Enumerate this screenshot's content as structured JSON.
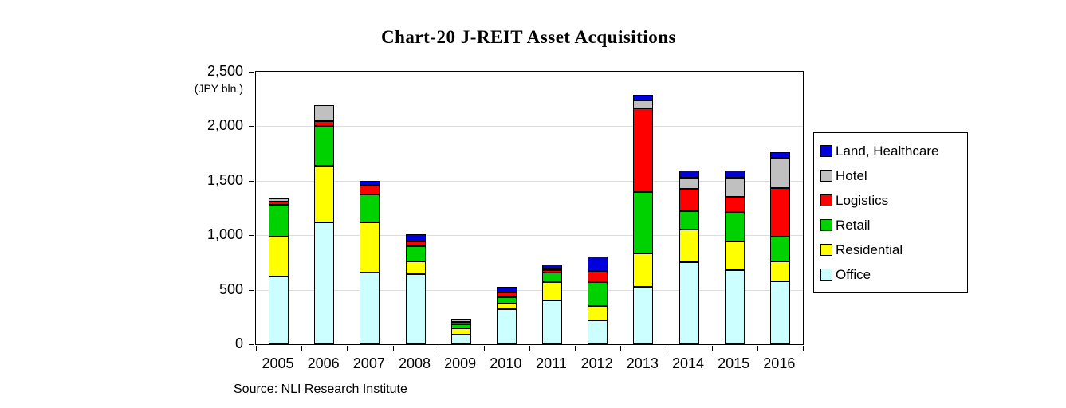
{
  "title": "Chart-20 J-REIT Asset Acquisitions",
  "source_note": "Source: NLI Research Institute",
  "y_axis": {
    "unit_label": "(JPY bln.)",
    "tick_labels_top_to_bottom": [
      "2,500",
      "2,000",
      "1,500",
      "1,000",
      "500",
      "0"
    ]
  },
  "colors": {
    "office": "#CCFFFF",
    "residential": "#FFFF00",
    "retail": "#00D200",
    "logistics": "#FF0000",
    "hotel": "#C0C0C0",
    "land_healthcare": "#0000DC",
    "segment_border": "#000000",
    "gridline": "#DCDCDC"
  },
  "chart_data": {
    "type": "bar",
    "stacked": true,
    "title": "Chart-20 J-REIT Asset Acquisitions",
    "xlabel": "",
    "ylabel": "(JPY bln.)",
    "ylim": [
      0,
      2500
    ],
    "ytick_interval": 500,
    "grid": true,
    "legend_position": "right",
    "legend_order_top_to_bottom": [
      "Land, Healthcare",
      "Hotel",
      "Logistics",
      "Retail",
      "Residential",
      "Office"
    ],
    "categories": [
      "2005",
      "2006",
      "2007",
      "2008",
      "2009",
      "2010",
      "2011",
      "2012",
      "2013",
      "2014",
      "2015",
      "2016"
    ],
    "series": [
      {
        "name": "Office",
        "color": "#CCFFFF",
        "values": [
          620,
          1120,
          655,
          640,
          90,
          320,
          400,
          220,
          530,
          750,
          680,
          575
        ]
      },
      {
        "name": "Residential",
        "color": "#FFFF00",
        "values": [
          370,
          515,
          465,
          120,
          55,
          50,
          170,
          130,
          305,
          305,
          260,
          185
        ]
      },
      {
        "name": "Retail",
        "color": "#00D200",
        "values": [
          290,
          370,
          255,
          140,
          40,
          60,
          90,
          220,
          560,
          165,
          275,
          225
        ]
      },
      {
        "name": "Logistics",
        "color": "#FF0000",
        "values": [
          30,
          45,
          90,
          40,
          20,
          45,
          20,
          105,
          770,
          205,
          135,
          450
        ]
      },
      {
        "name": "Hotel",
        "color": "#C0C0C0",
        "values": [
          30,
          145,
          0,
          0,
          30,
          0,
          15,
          0,
          75,
          100,
          180,
          275
        ]
      },
      {
        "name": "Land, Healthcare",
        "color": "#0000DC",
        "values": [
          0,
          0,
          35,
          70,
          0,
          55,
          35,
          130,
          50,
          70,
          65,
          55
        ]
      }
    ],
    "totals": [
      1340,
      2195,
      1500,
      1010,
      235,
      530,
      730,
      805,
      2290,
      1595,
      1595,
      1765
    ]
  }
}
